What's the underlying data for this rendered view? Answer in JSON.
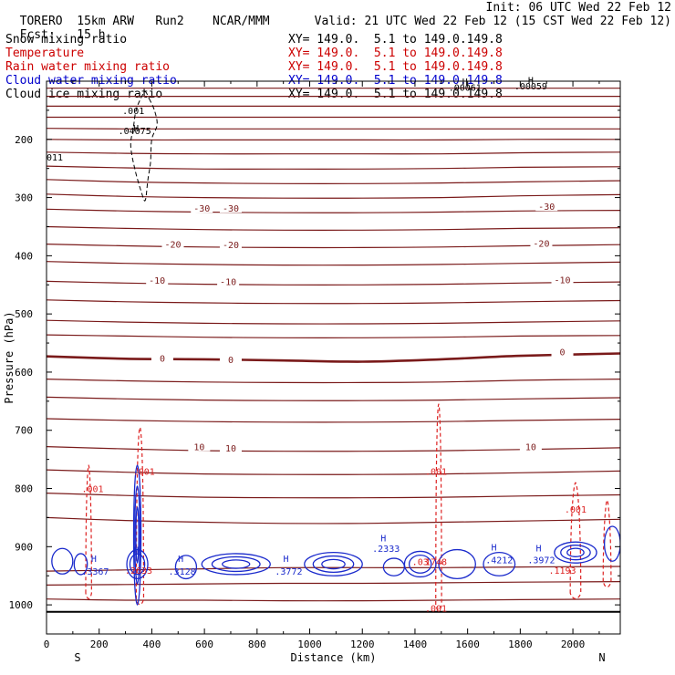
{
  "header": {
    "model": "TORERO",
    "resolution": "15km ARW",
    "run": "Run2",
    "org": "NCAR/MMM",
    "init": "Init: 06 UTC Wed 22 Feb 12",
    "fcst_label": "Fcst:",
    "fcst_value": "15 h",
    "valid": "Valid: 21 UTC Wed 22 Feb 12 (15 CST Wed 22 Feb 12)"
  },
  "legend": [
    {
      "name": "Snow mixing ratio",
      "color": "#000000",
      "xy": "XY= 149.0.  5.1 to 149.0.149.8"
    },
    {
      "name": "Temperature",
      "color": "#cc0000",
      "xy": "XY= 149.0.  5.1 to 149.0.149.8"
    },
    {
      "name": "Rain water mixing ratio",
      "color": "#cc0000",
      "xy": "XY= 149.0.  5.1 to 149.0.149.8"
    },
    {
      "name": "Cloud water mixing ratio",
      "color": "#0000cc",
      "xy": "XY= 149.0.  5.1 to 149.0.149.8"
    },
    {
      "name": "Cloud ice mixing ratio",
      "color": "#000000",
      "xy": "XY= 149.0.  5.1 to 149.0.149.8"
    }
  ],
  "chart_data": {
    "type": "contour-cross-section",
    "xlabel": "Distance (km)",
    "ylabel": "Pressure (hPa)",
    "xlim": [
      0,
      2180
    ],
    "ylim": [
      1050,
      100
    ],
    "x_ticks": [
      0,
      200,
      400,
      600,
      800,
      1000,
      1200,
      1400,
      1600,
      1800,
      2000
    ],
    "y_ticks": [
      200,
      300,
      400,
      500,
      600,
      700,
      800,
      900,
      1000
    ],
    "endpoint_labels": {
      "left": "S",
      "right": "N"
    },
    "colors": {
      "temperature": "#7a1a1a",
      "rain": "#dd2222",
      "cloud_water": "#1a2acc",
      "ice_snow": "#000000",
      "axes": "#000000"
    },
    "temperature_isotherms": [
      {
        "p": [
          112,
          112,
          112,
          112,
          112,
          112,
          112,
          112
        ],
        "label": "",
        "bold": false
      },
      {
        "p": [
          126,
          126,
          126,
          126,
          126,
          126,
          126,
          126
        ],
        "label": "",
        "bold": false
      },
      {
        "p": [
          143,
          143,
          143,
          143,
          143,
          143,
          143,
          143
        ],
        "label": "",
        "bold": false
      },
      {
        "p": [
          162,
          162,
          162,
          162,
          162,
          162,
          162,
          162
        ],
        "label": "",
        "bold": false
      },
      {
        "p": [
          181,
          182,
          182,
          182,
          182,
          182,
          182,
          182
        ],
        "label": "",
        "bold": false
      },
      {
        "p": [
          200,
          201,
          201,
          201,
          201,
          201,
          200,
          200
        ],
        "label": "",
        "bold": false
      },
      {
        "p": [
          222,
          224,
          225,
          225,
          225,
          225,
          223,
          222
        ],
        "label": "",
        "bold": false
      },
      {
        "p": [
          246,
          249,
          251,
          251,
          251,
          250,
          248,
          247
        ],
        "label": "",
        "bold": false
      },
      {
        "p": [
          269,
          273,
          275,
          276,
          276,
          275,
          273,
          271
        ],
        "label": "",
        "bold": false
      },
      {
        "p": [
          294,
          298,
          300,
          301,
          301,
          300,
          297,
          295
        ],
        "label": "",
        "bold": false
      },
      {
        "p": [
          320,
          323,
          325,
          326,
          326,
          325,
          323,
          322
        ],
        "label": "-30",
        "bold": false
      },
      {
        "p": [
          350,
          353,
          355,
          356,
          356,
          355,
          353,
          352
        ],
        "label": "",
        "bold": false
      },
      {
        "p": [
          380,
          383,
          385,
          386,
          386,
          385,
          383,
          381
        ],
        "label": "-20",
        "bold": false
      },
      {
        "p": [
          410,
          413,
          415,
          416,
          416,
          415,
          413,
          411
        ],
        "label": "",
        "bold": false
      },
      {
        "p": [
          444,
          447,
          449,
          450,
          450,
          449,
          447,
          445
        ],
        "label": "-10",
        "bold": false
      },
      {
        "p": [
          476,
          479,
          481,
          482,
          482,
          481,
          479,
          477
        ],
        "label": "",
        "bold": false
      },
      {
        "p": [
          511,
          514,
          516,
          517,
          517,
          516,
          514,
          512
        ],
        "label": "",
        "bold": false
      },
      {
        "p": [
          536,
          538,
          540,
          541,
          541,
          540,
          538,
          537
        ],
        "label": "",
        "bold": false
      },
      {
        "p": [
          573,
          577,
          578,
          580,
          582,
          578,
          572,
          568
        ],
        "label": "0",
        "bold": true
      },
      {
        "p": [
          612,
          615,
          617,
          618,
          618,
          617,
          614,
          612
        ],
        "label": "",
        "bold": false
      },
      {
        "p": [
          643,
          646,
          648,
          649,
          649,
          648,
          646,
          644
        ],
        "label": "",
        "bold": false
      },
      {
        "p": [
          680,
          683,
          685,
          686,
          686,
          685,
          683,
          681
        ],
        "label": "",
        "bold": false
      },
      {
        "p": [
          728,
          732,
          735,
          736,
          736,
          735,
          733,
          730
        ],
        "label": "10",
        "bold": false
      },
      {
        "p": [
          768,
          772,
          775,
          776,
          776,
          775,
          773,
          770
        ],
        "label": "",
        "bold": false
      },
      {
        "p": [
          808,
          812,
          815,
          816,
          816,
          815,
          813,
          811
        ],
        "label": "",
        "bold": false
      },
      {
        "p": [
          850,
          855,
          858,
          860,
          860,
          858,
          856,
          853
        ],
        "label": "",
        "bold": false
      },
      {
        "p": [
          942,
          940,
          938,
          936,
          936,
          936,
          935,
          934
        ],
        "label": "",
        "bold": false
      },
      {
        "p": [
          966,
          965,
          964,
          963,
          963,
          962,
          961,
          960
        ],
        "label": "",
        "bold": false
      },
      {
        "p": [
          990,
          992,
          992,
          993,
          993,
          992,
          991,
          990
        ],
        "label": "",
        "bold": false
      }
    ],
    "isotherm_x_knots": [
      0,
      300,
      600,
      900,
      1200,
      1500,
      1800,
      2180
    ],
    "surface_line_p": 1012,
    "temperature_labels": [
      {
        "x": 590,
        "p": 318,
        "text": "-30"
      },
      {
        "x": 700,
        "p": 318,
        "text": "-30"
      },
      {
        "x": 1900,
        "p": 315,
        "text": "-30"
      },
      {
        "x": 480,
        "p": 380,
        "text": "-20"
      },
      {
        "x": 700,
        "p": 381,
        "text": "-20"
      },
      {
        "x": 1880,
        "p": 378,
        "text": "-20"
      },
      {
        "x": 420,
        "p": 442,
        "text": "-10"
      },
      {
        "x": 690,
        "p": 444,
        "text": "-10"
      },
      {
        "x": 1960,
        "p": 441,
        "text": "-10"
      },
      {
        "x": 440,
        "p": 576,
        "text": "0"
      },
      {
        "x": 700,
        "p": 578,
        "text": "0"
      },
      {
        "x": 1960,
        "p": 565,
        "text": "0"
      },
      {
        "x": 580,
        "p": 728,
        "text": "10"
      },
      {
        "x": 700,
        "p": 730,
        "text": "10"
      },
      {
        "x": 1840,
        "p": 728,
        "text": "10"
      }
    ],
    "rain_contours": [
      {
        "type": "plume",
        "x": 160,
        "w": 22,
        "top": 760,
        "bottom": 980
      },
      {
        "type": "plume",
        "x": 355,
        "w": 28,
        "top": 695,
        "bottom": 990
      },
      {
        "type": "plume",
        "x": 1490,
        "w": 22,
        "top": 655,
        "bottom": 1000
      },
      {
        "type": "plume",
        "x": 2010,
        "w": 40,
        "top": 790,
        "bottom": 980
      },
      {
        "type": "plume",
        "x": 2130,
        "w": 30,
        "top": 820,
        "bottom": 960
      }
    ],
    "rain_labels": [
      {
        "x": 175,
        "p": 800,
        "text": ".001"
      },
      {
        "x": 370,
        "p": 770,
        "text": ".001"
      },
      {
        "x": 1480,
        "p": 770,
        "text": ".001"
      },
      {
        "x": 2010,
        "p": 835,
        "text": ".001"
      },
      {
        "x": 1480,
        "p": 1005,
        "text": ".001"
      },
      {
        "x": 350,
        "p": 940,
        "text": ".2633"
      },
      {
        "x": 1420,
        "p": 925,
        "text": ".03"
      },
      {
        "x": 1480,
        "p": 925,
        "text": "1748"
      },
      {
        "x": 1960,
        "p": 940,
        "text": ".1193"
      }
    ],
    "cloud_water_cells": [
      {
        "x": 60,
        "p": 925,
        "rx": 40,
        "rp": 22,
        "rings": 1
      },
      {
        "x": 130,
        "p": 930,
        "rx": 25,
        "rp": 18,
        "rings": 1
      },
      {
        "x": 345,
        "p": 880,
        "rx": 14,
        "rp": 120,
        "rings": 3
      },
      {
        "x": 345,
        "p": 930,
        "rx": 40,
        "rp": 25,
        "rings": 2
      },
      {
        "x": 530,
        "p": 935,
        "rx": 40,
        "rp": 20,
        "rings": 1
      },
      {
        "x": 720,
        "p": 930,
        "rx": 130,
        "rp": 18,
        "rings": 3
      },
      {
        "x": 1090,
        "p": 930,
        "rx": 110,
        "rp": 20,
        "rings": 3
      },
      {
        "x": 1320,
        "p": 935,
        "rx": 40,
        "rp": 15,
        "rings": 1
      },
      {
        "x": 1420,
        "p": 930,
        "rx": 60,
        "rp": 22,
        "rings": 2
      },
      {
        "x": 1560,
        "p": 930,
        "rx": 70,
        "rp": 25,
        "rings": 1
      },
      {
        "x": 1720,
        "p": 930,
        "rx": 60,
        "rp": 20,
        "rings": 1
      },
      {
        "x": 2010,
        "p": 910,
        "rx": 80,
        "rp": 18,
        "rings": 3
      },
      {
        "x": 2150,
        "p": 895,
        "rx": 30,
        "rp": 30,
        "rings": 1
      }
    ],
    "cloud_water_labels": [
      {
        "x": 185,
        "p": 942,
        "text": ".3367"
      },
      {
        "x": 515,
        "p": 942,
        "text": ".3128"
      },
      {
        "x": 920,
        "p": 942,
        "text": ".3772"
      },
      {
        "x": 1290,
        "p": 903,
        "text": ".2333"
      },
      {
        "x": 1720,
        "p": 922,
        "text": ".4212"
      },
      {
        "x": 1880,
        "p": 922,
        "text": ".3972"
      }
    ],
    "highs": [
      {
        "x": 180,
        "p": 920,
        "color": "cloud",
        "text": "H"
      },
      {
        "x": 510,
        "p": 920,
        "color": "cloud",
        "text": "H"
      },
      {
        "x": 910,
        "p": 920,
        "color": "cloud",
        "text": "H"
      },
      {
        "x": 1280,
        "p": 885,
        "color": "cloud",
        "text": "H"
      },
      {
        "x": 1700,
        "p": 900,
        "color": "cloud",
        "text": "H"
      },
      {
        "x": 1870,
        "p": 902,
        "color": "cloud",
        "text": "H"
      },
      {
        "x": 340,
        "p": 905,
        "color": "cloud",
        "text": "H"
      },
      {
        "x": 340,
        "p": 180,
        "color": "ice",
        "text": "H"
      }
    ],
    "ice_outline": [
      [
        390,
        130
      ],
      [
        410,
        150
      ],
      [
        420,
        175
      ],
      [
        400,
        200
      ],
      [
        395,
        240
      ],
      [
        385,
        270
      ],
      [
        375,
        305
      ],
      [
        360,
        290
      ],
      [
        335,
        250
      ],
      [
        320,
        210
      ],
      [
        330,
        180
      ],
      [
        340,
        150
      ],
      [
        360,
        128
      ],
      [
        375,
        118
      ],
      [
        390,
        130
      ]
    ],
    "ice_labels": [
      {
        "x": 335,
        "p": 185,
        "text": ".04075"
      },
      {
        "x": 330,
        "p": 150,
        "text": ".001"
      },
      {
        "x": 0,
        "p": 230,
        "text": "011"
      },
      {
        "x": 1590,
        "p": 110,
        "text": ".00061"
      },
      {
        "x": 1840,
        "p": 108,
        "text": ".00059"
      }
    ],
    "ice_highs": [
      {
        "x": 1590,
        "p": 100,
        "text": "H"
      },
      {
        "x": 1840,
        "p": 98,
        "text": "H"
      }
    ]
  }
}
